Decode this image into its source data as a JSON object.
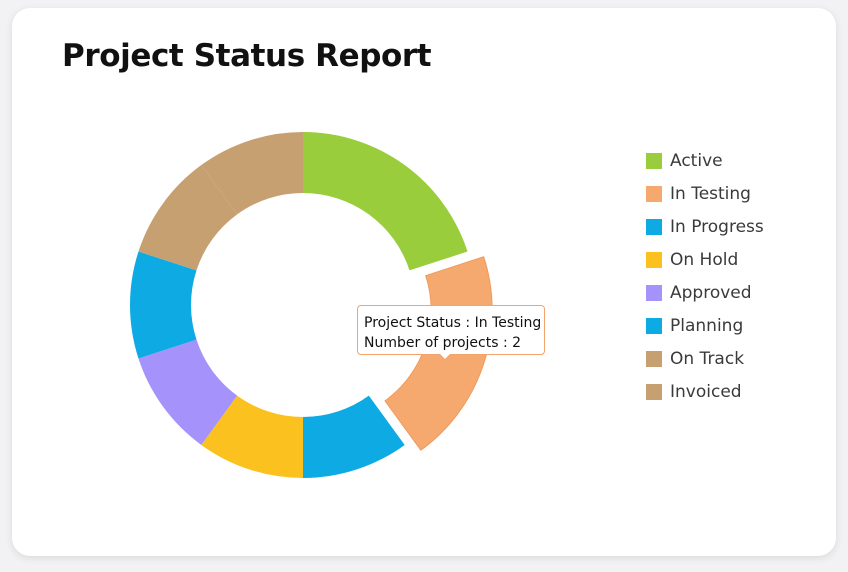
{
  "chart_data": {
    "type": "pie",
    "title": "Project Status Report",
    "categories": [
      "Active",
      "In Testing",
      "In Progress",
      "On Hold",
      "Approved",
      "Planning",
      "On Track",
      "Invoiced"
    ],
    "values": [
      2,
      2,
      1,
      1,
      1,
      1,
      1,
      1
    ],
    "colors": [
      "#9acd3c",
      "#f6a96f",
      "#0eaae3",
      "#fbc21f",
      "#a592fb",
      "#0eaae3",
      "#c7a072",
      "#c7a072"
    ],
    "donut": true,
    "highlighted_category": "In Testing",
    "legend_position": "right",
    "tooltip": {
      "status_line": "Project Status : In Testing",
      "count_line": "Number of projects : 2"
    }
  }
}
